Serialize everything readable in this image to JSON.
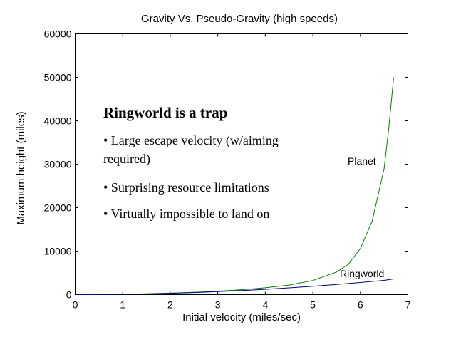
{
  "chart_data": {
    "type": "line",
    "title": "Gravity Vs. Pseudo-Gravity (high speeds)",
    "xlabel": "Initial velocity (miles/sec)",
    "ylabel": "Maximum height (miles)",
    "xlim": [
      0,
      7
    ],
    "ylim": [
      0,
      60000
    ],
    "x_ticks": [
      "0",
      "1",
      "2",
      "3",
      "4",
      "5",
      "6",
      "7"
    ],
    "y_ticks": [
      "0",
      "10000",
      "20000",
      "30000",
      "40000",
      "50000",
      "60000"
    ],
    "grid": false,
    "legend": "none",
    "series": [
      {
        "name": "Planet",
        "color": "#007f00",
        "x": [
          0,
          0.5,
          1,
          1.5,
          2,
          2.5,
          3,
          3.5,
          4,
          4.5,
          5,
          5.5,
          5.75,
          6,
          6.25,
          6.5,
          6.6,
          6.7
        ],
        "y": [
          0,
          20,
          80,
          190,
          340,
          540,
          800,
          1130,
          1580,
          2200,
          3250,
          5200,
          7000,
          10600,
          17000,
          29000,
          38500,
          50000
        ]
      },
      {
        "name": "Ringworld",
        "color": "#00007f",
        "x": [
          0,
          0.5,
          1,
          1.5,
          2,
          2.5,
          3,
          3.5,
          4,
          4.5,
          5,
          5.5,
          6,
          6.5,
          6.7
        ],
        "y": [
          0,
          20,
          75,
          170,
          310,
          480,
          690,
          930,
          1220,
          1550,
          1920,
          2320,
          2780,
          3280,
          3600
        ]
      }
    ],
    "annotation": {
      "heading": "Ringworld is a trap",
      "items": [
        [
          "• Large escape velocity (w/aiming",
          "required)"
        ],
        [
          "• Surprising resource limitations"
        ],
        [
          "• Virtually impossible to land on"
        ]
      ]
    }
  }
}
